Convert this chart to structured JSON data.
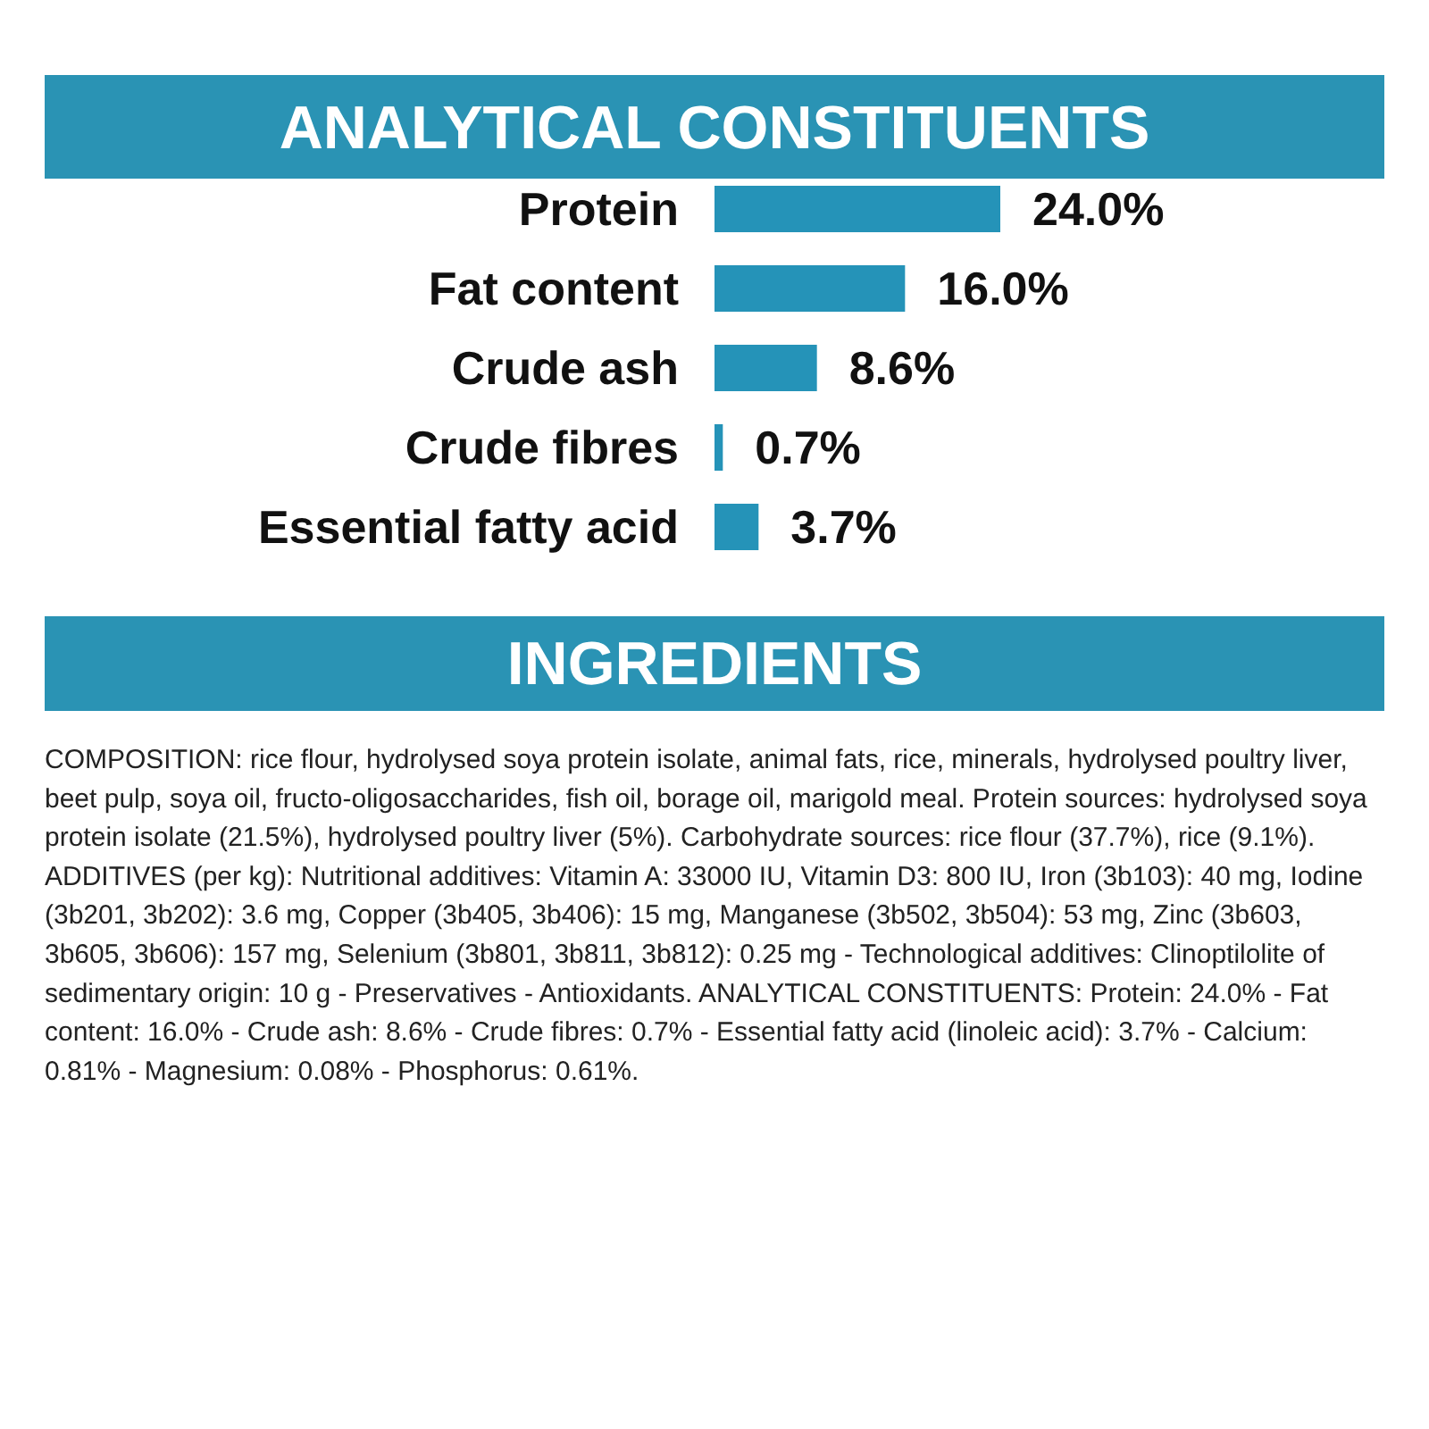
{
  "chart_data": {
    "type": "bar",
    "orientation": "horizontal",
    "title": "ANALYTICAL CONSTITUENTS",
    "categories": [
      "Protein",
      "Fat content",
      "Crude ash",
      "Crude fibres",
      "Essential fatty acid"
    ],
    "values": [
      24.0,
      16.0,
      8.6,
      0.7,
      3.7
    ],
    "value_labels": [
      "24.0%",
      "16.0%",
      "8.6%",
      "0.7%",
      "3.7%"
    ],
    "color": "#2593b8",
    "annotations": [
      "INGREDIENTS",
      "COMPOSITION: rice flour, hydrolysed soya protein isolate, animal fats, rice, minerals, hydrolysed poultry liver, beet pulp, soya oil, fructo-oligosaccharides, fish oil, borage oil, marigold meal. Protein sources: hydrolysed soya protein isolate (21.5%), hydrolysed poultry liver (5%). Carbohydrate sources: rice flour (37.7%), rice (9.1%). ADDITIVES (per kg): Nutritional additives: Vitamin A: 33000 IU, Vitamin D3: 800 IU, Iron (3b103): 40 mg, Iodine (3b201, 3b202): 3.6 mg, Copper (3b405, 3b406): 15 mg, Manganese (3b502, 3b504): 53 mg, Zinc (3b603, 3b605, 3b606): 157 mg, Selenium (3b801, 3b811, 3b812): 0.25 mg - Technological additives: Clinoptilolite of sedimentary origin: 10 g - Preservatives - Antioxidants. ANALYTICAL CONSTITUENTS: Protein: 24.0% - Fat content: 16.0% - Crude ash: 8.6% - Crude fibres: 0.7% - Essential fatty acid (linoleic acid): 3.7% - Calcium: 0.81% - Magnesium: 0.08% - Phosphorus: 0.61%."
    ]
  }
}
